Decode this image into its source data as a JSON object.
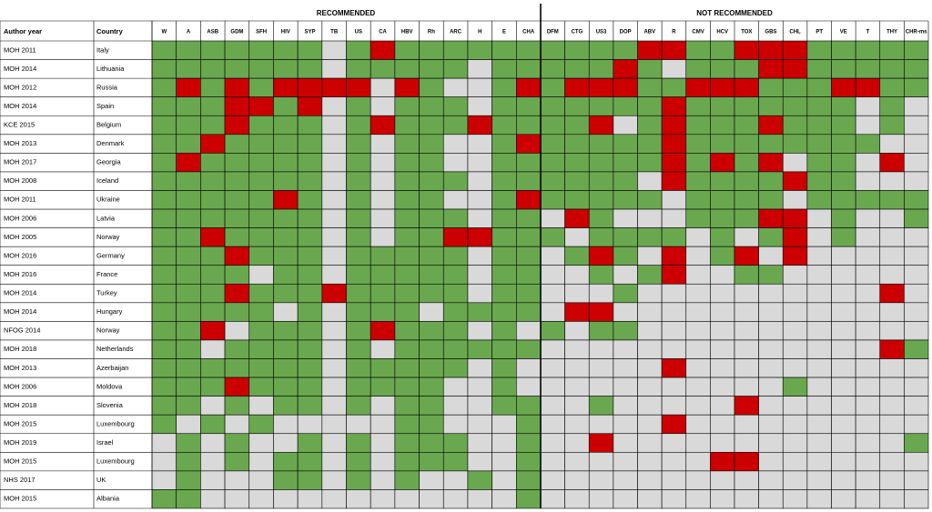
{
  "header": {
    "author_year": "Author year",
    "country": "Country",
    "recommended_title": "RECOMMENDED",
    "not_recommended_title": "NOT RECOMMENDED",
    "recommended": [
      "W",
      "A",
      "ASB",
      "GDM",
      "SFH",
      "HIV",
      "SYP",
      "TB",
      "US",
      "CA",
      "HBV",
      "Rh",
      "ARC",
      "H",
      "E",
      "CHA"
    ],
    "not_recommended": [
      "DFM",
      "CTG",
      "US3",
      "DOP",
      "ABV",
      "R",
      "CMV",
      "HCV",
      "TOX",
      "GBS",
      "CHL",
      "PT",
      "VE",
      "T",
      "THY",
      "CHR-ms"
    ]
  },
  "status_colors": {
    "G": "#6aa84f",
    "R": "#cc0000",
    "N": "#d9d9d9"
  },
  "rows": [
    {
      "author_year": "MOH 2011",
      "country": "Italy",
      "recommended": "GGGGGGGNGRGGGGGG",
      "not_recommended": "GGGGRRGGRRRGGGGG"
    },
    {
      "author_year": "MOH 2014",
      "country": "Lithuania",
      "recommended": "GGGGGGGNGGGGGNGG",
      "not_recommended": "GGGRGNGGGRRGGGGG"
    },
    {
      "author_year": "MOH 2012",
      "country": "Russia",
      "recommended": "GRGRGRRRRNRGNNGR",
      "not_recommended": "GRRRGGRRRGGGRRGG"
    },
    {
      "author_year": "MOH 2014",
      "country": "Spain",
      "recommended": "GGGRRGRNGNGGGNGG",
      "not_recommended": "GGGGGRGGGGGGGNGN"
    },
    {
      "author_year": "KCE 2015",
      "country": "Belgium",
      "recommended": "GGGRGGGNGRGGGRGG",
      "not_recommended": "GGRNGRGGGRGGGNGN"
    },
    {
      "author_year": "MOH 2013",
      "country": "Denmark",
      "recommended": "GGRGGGGNGNGGNNGR",
      "not_recommended": "GGGGGRGGGGGGGGNN"
    },
    {
      "author_year": "MOH 2017",
      "country": "Georgia",
      "recommended": "GRGGGGGNGNGGNNGG",
      "not_recommended": "GGGGGRGRGRNGGNRN"
    },
    {
      "author_year": "MOH 2008",
      "country": "Iceland",
      "recommended": "GGGGGGGNGNGGGNGG",
      "not_recommended": "GGGGNRGGGGRGGNNN"
    },
    {
      "author_year": "MOH 2011",
      "country": "Ukraine",
      "recommended": "GGGGGRGNGNGGNNGR",
      "not_recommended": "GGGGGNGGGGNGGGGG"
    },
    {
      "author_year": "MOH 2006",
      "country": "Latvia",
      "recommended": "GGGGGGGNGNGGGNGG",
      "not_recommended": "NRGNNNGGGRRNGNNG"
    },
    {
      "author_year": "MOH 2005",
      "country": "Norway",
      "recommended": "GGRGGGGNGNGGRRGG",
      "not_recommended": "GNGGGGNGNGRNGNNN"
    },
    {
      "author_year": "MOH 2016",
      "country": "Germany",
      "recommended": "GGGRGGGNGGGGGNGG",
      "not_recommended": "NGRGNRNGRNRNNNNN"
    },
    {
      "author_year": "MOH 2016",
      "country": "France",
      "recommended": "GGGGNGGNGGGGGNGG",
      "not_recommended": "NNGNGRNNGGNNNNNN"
    },
    {
      "author_year": "MOH 2014",
      "country": "Turkey",
      "recommended": "GGGRGGGRGGGGGNGG",
      "not_recommended": "NNNGNNNNNNNNNNRN"
    },
    {
      "author_year": "MOH 2014",
      "country": "Hungary",
      "recommended": "GGGGGNGNGGGNGGGG",
      "not_recommended": "NRRNNNNNNNNNNNNN"
    },
    {
      "author_year": "NFOG 2014",
      "country": "Norway",
      "recommended": "GGRNGGGNGRGGGNGN",
      "not_recommended": "GNGGNNNNNNNNNNNN"
    },
    {
      "author_year": "MOH 2018",
      "country": "Netherlands",
      "recommended": "GGNGGGGNGNGGGGGG",
      "not_recommended": "NNNNNNNNNNNNNNRG"
    },
    {
      "author_year": "MOH 2013",
      "country": "Azerbaijan",
      "recommended": "GGGGGGGNGGGGGNGN",
      "not_recommended": "NNNNNRNNNNNNNNNN"
    },
    {
      "author_year": "MOH 2006",
      "country": "Moldova",
      "recommended": "GGGRGGGNGGGGNNGN",
      "not_recommended": "NNNNNNNNNNGNNNNN"
    },
    {
      "author_year": "MOH 2018",
      "country": "Slovenia",
      "recommended": "GGNGNGGNGNGGNNGG",
      "not_recommended": "NNGNNNNNRNNNNNNN"
    },
    {
      "author_year": "MOH 2015",
      "country": "Luxembourg",
      "recommended": "GNGNGNNNNNGGNNNG",
      "not_recommended": "NNNNNRNNNNNNNNNN"
    },
    {
      "author_year": "MOH 2019",
      "country": "Israel",
      "recommended": "NGNGNNGNGNGGGNNG",
      "not_recommended": "NNRNNNNNNNNNNNNG"
    },
    {
      "author_year": "MOH 2015",
      "country": "Luxembourg",
      "recommended": "NGNGNGGNGNGGGNNG",
      "not_recommended": "NNNNNNNRRNNNNNNN"
    },
    {
      "author_year": "NHS 2017",
      "country": "UK",
      "recommended": "NGNNNGGNGNGNNGNG",
      "not_recommended": "NNNNNNNNNNNNNNNN"
    },
    {
      "author_year": "MOH 2015",
      "country": "Albania",
      "recommended": "GGNNNNNNNNNNNNNG",
      "not_recommended": "NNNNNNNNNNNNNNNN"
    }
  ]
}
